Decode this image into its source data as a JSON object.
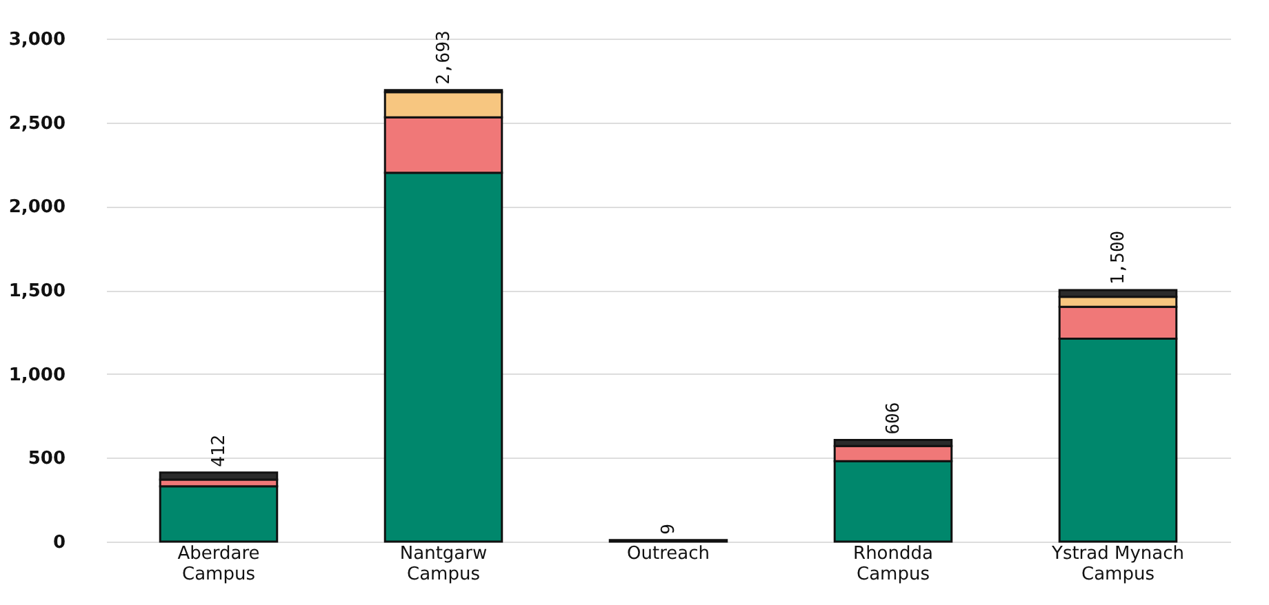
{
  "chart_data": {
    "type": "bar",
    "stacked": true,
    "categories": [
      "Aberdare Campus",
      "Nantgarw Campus",
      "Outreach",
      "Rhondda Campus",
      "Ystrad Mynach Campus"
    ],
    "series": [
      {
        "color": "#00876c",
        "values": [
          330,
          2200,
          null,
          480,
          1210
        ]
      },
      {
        "color": "#f07878",
        "values": [
          40,
          330,
          null,
          90,
          190
        ]
      },
      {
        "color": "#f7c680",
        "values": [
          null,
          150,
          null,
          null,
          60
        ]
      },
      {
        "color": "#2b2b2b",
        "values": [
          42,
          13,
          9,
          36,
          40
        ]
      }
    ],
    "totals": [
      "412",
      "2,693",
      "9",
      "606",
      "1,500"
    ],
    "ylim": [
      0,
      3000
    ],
    "yticks": [
      0,
      500,
      {
        "value": 1000,
        "label": "1,000"
      },
      {
        "value": 1500,
        "label": "1,500"
      },
      {
        "value": 2000,
        "label": "2,000"
      },
      {
        "value": 2500,
        "label": "2,500"
      },
      {
        "value": 3000,
        "label": "3,000"
      }
    ],
    "grid": "y"
  }
}
